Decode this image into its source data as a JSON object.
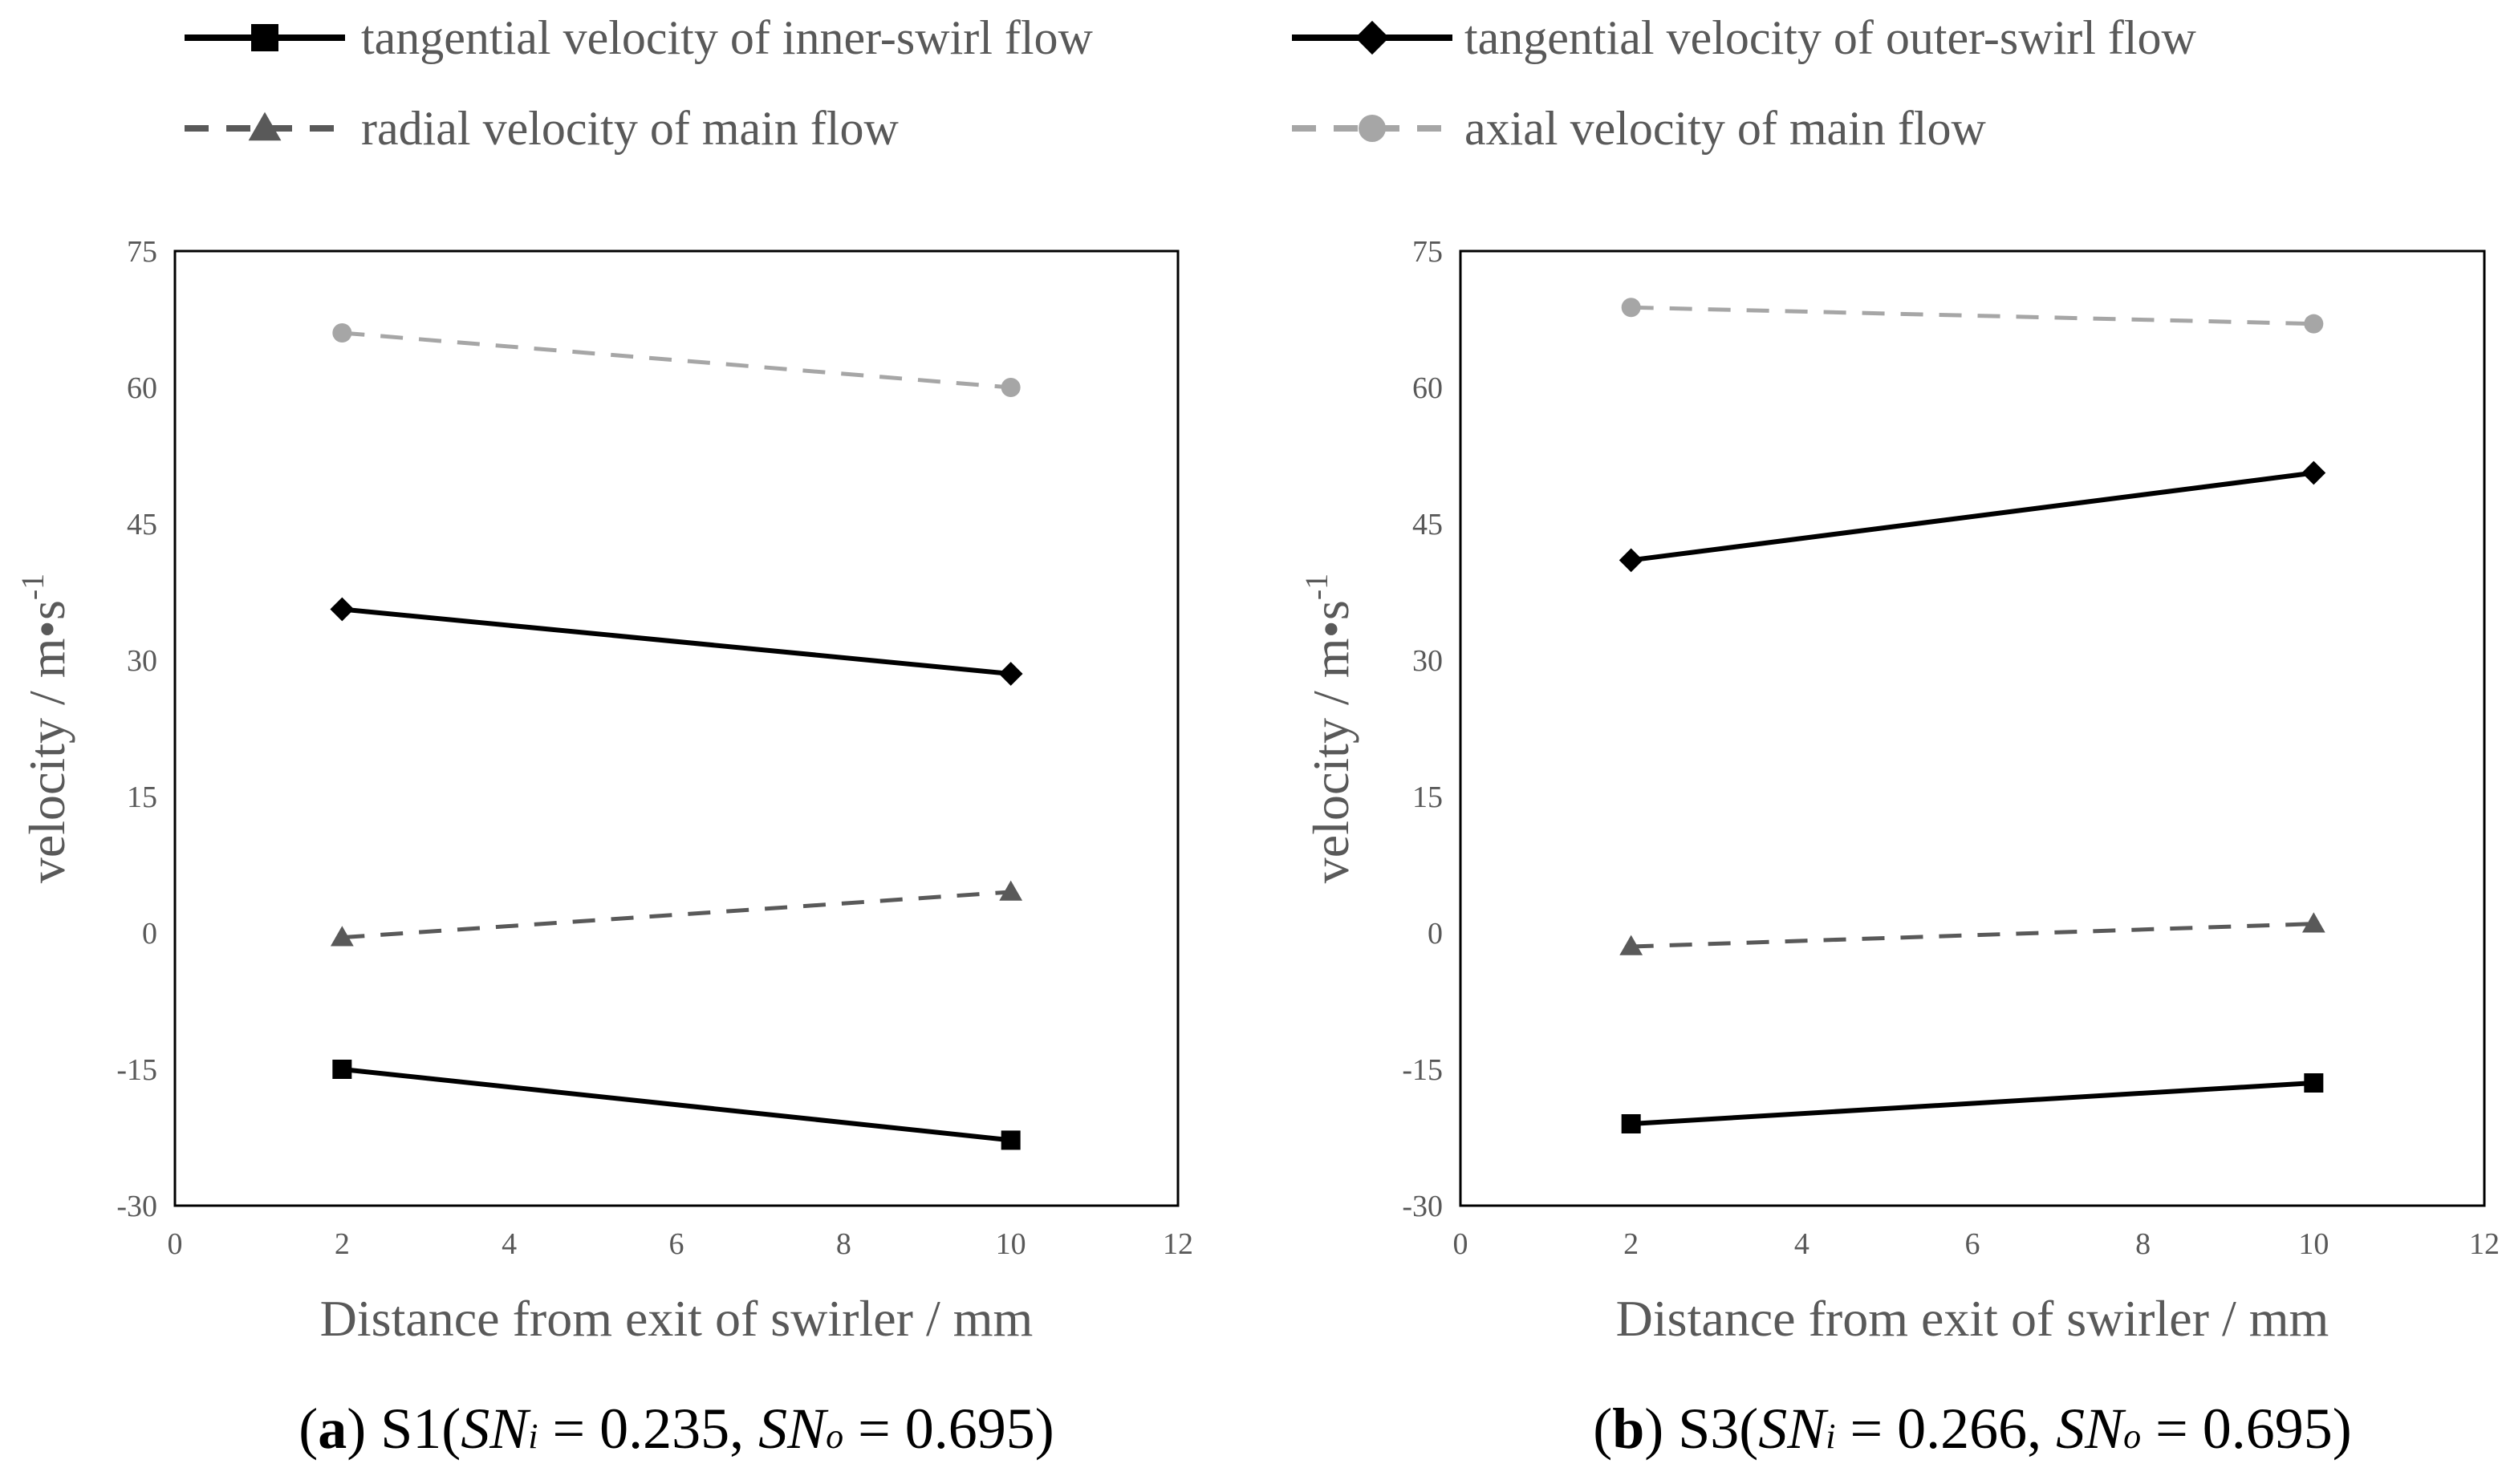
{
  "legend": [
    {
      "label": "tangential velocity of inner-swirl flow",
      "marker": "square",
      "line": "solid",
      "color": "#000000"
    },
    {
      "label": "tangential velocity of outer-swirl flow",
      "marker": "diamond",
      "line": "solid",
      "color": "#000000"
    },
    {
      "label": "radial velocity of main flow",
      "marker": "triangle",
      "line": "dash",
      "color": "#595959"
    },
    {
      "label": "axial velocity of main flow",
      "marker": "circle",
      "line": "dash",
      "color": "#a6a6a6"
    }
  ],
  "chart_data": [
    {
      "type": "line",
      "xlabel": "Distance from exit of swirler / mm",
      "ylabel": "velocity / m•s",
      "ylabel_sup": "-1",
      "xlim": [
        0,
        12
      ],
      "ylim": [
        -30,
        75
      ],
      "xticks": [
        0,
        2,
        4,
        6,
        8,
        10,
        12
      ],
      "yticks": [
        -30,
        -15,
        0,
        15,
        30,
        45,
        60,
        75
      ],
      "x": [
        2,
        10
      ],
      "series": [
        {
          "name": "tangential velocity of inner-swirl flow",
          "values": [
            -15,
            -22.8
          ]
        },
        {
          "name": "tangential velocity of outer-swirl flow",
          "values": [
            35.6,
            28.5
          ]
        },
        {
          "name": "radial velocity of main flow",
          "values": [
            -0.5,
            4.5
          ]
        },
        {
          "name": "axial velocity of main flow",
          "values": [
            66,
            60
          ]
        }
      ],
      "caption": {
        "letter": "a",
        "scheme": "S1",
        "sni_value": "0.235",
        "sno_value": "0.695"
      }
    },
    {
      "type": "line",
      "xlabel": "Distance from exit of swirler / mm",
      "ylabel": "velocity / m•s",
      "ylabel_sup": "-1",
      "xlim": [
        0,
        12
      ],
      "ylim": [
        -30,
        75
      ],
      "xticks": [
        0,
        2,
        4,
        6,
        8,
        10,
        12
      ],
      "yticks": [
        -30,
        -15,
        0,
        15,
        30,
        45,
        60,
        75
      ],
      "x": [
        2,
        10
      ],
      "series": [
        {
          "name": "tangential velocity of inner-swirl flow",
          "values": [
            -21,
            -16.5
          ]
        },
        {
          "name": "tangential velocity of outer-swirl flow",
          "values": [
            41,
            50.6
          ]
        },
        {
          "name": "radial velocity of main flow",
          "values": [
            -1.5,
            1
          ]
        },
        {
          "name": "axial velocity of main flow",
          "values": [
            68.8,
            67
          ]
        }
      ],
      "caption": {
        "letter": "b",
        "scheme": "S3",
        "sni_value": "0.266",
        "sno_value": "0.695"
      }
    }
  ]
}
